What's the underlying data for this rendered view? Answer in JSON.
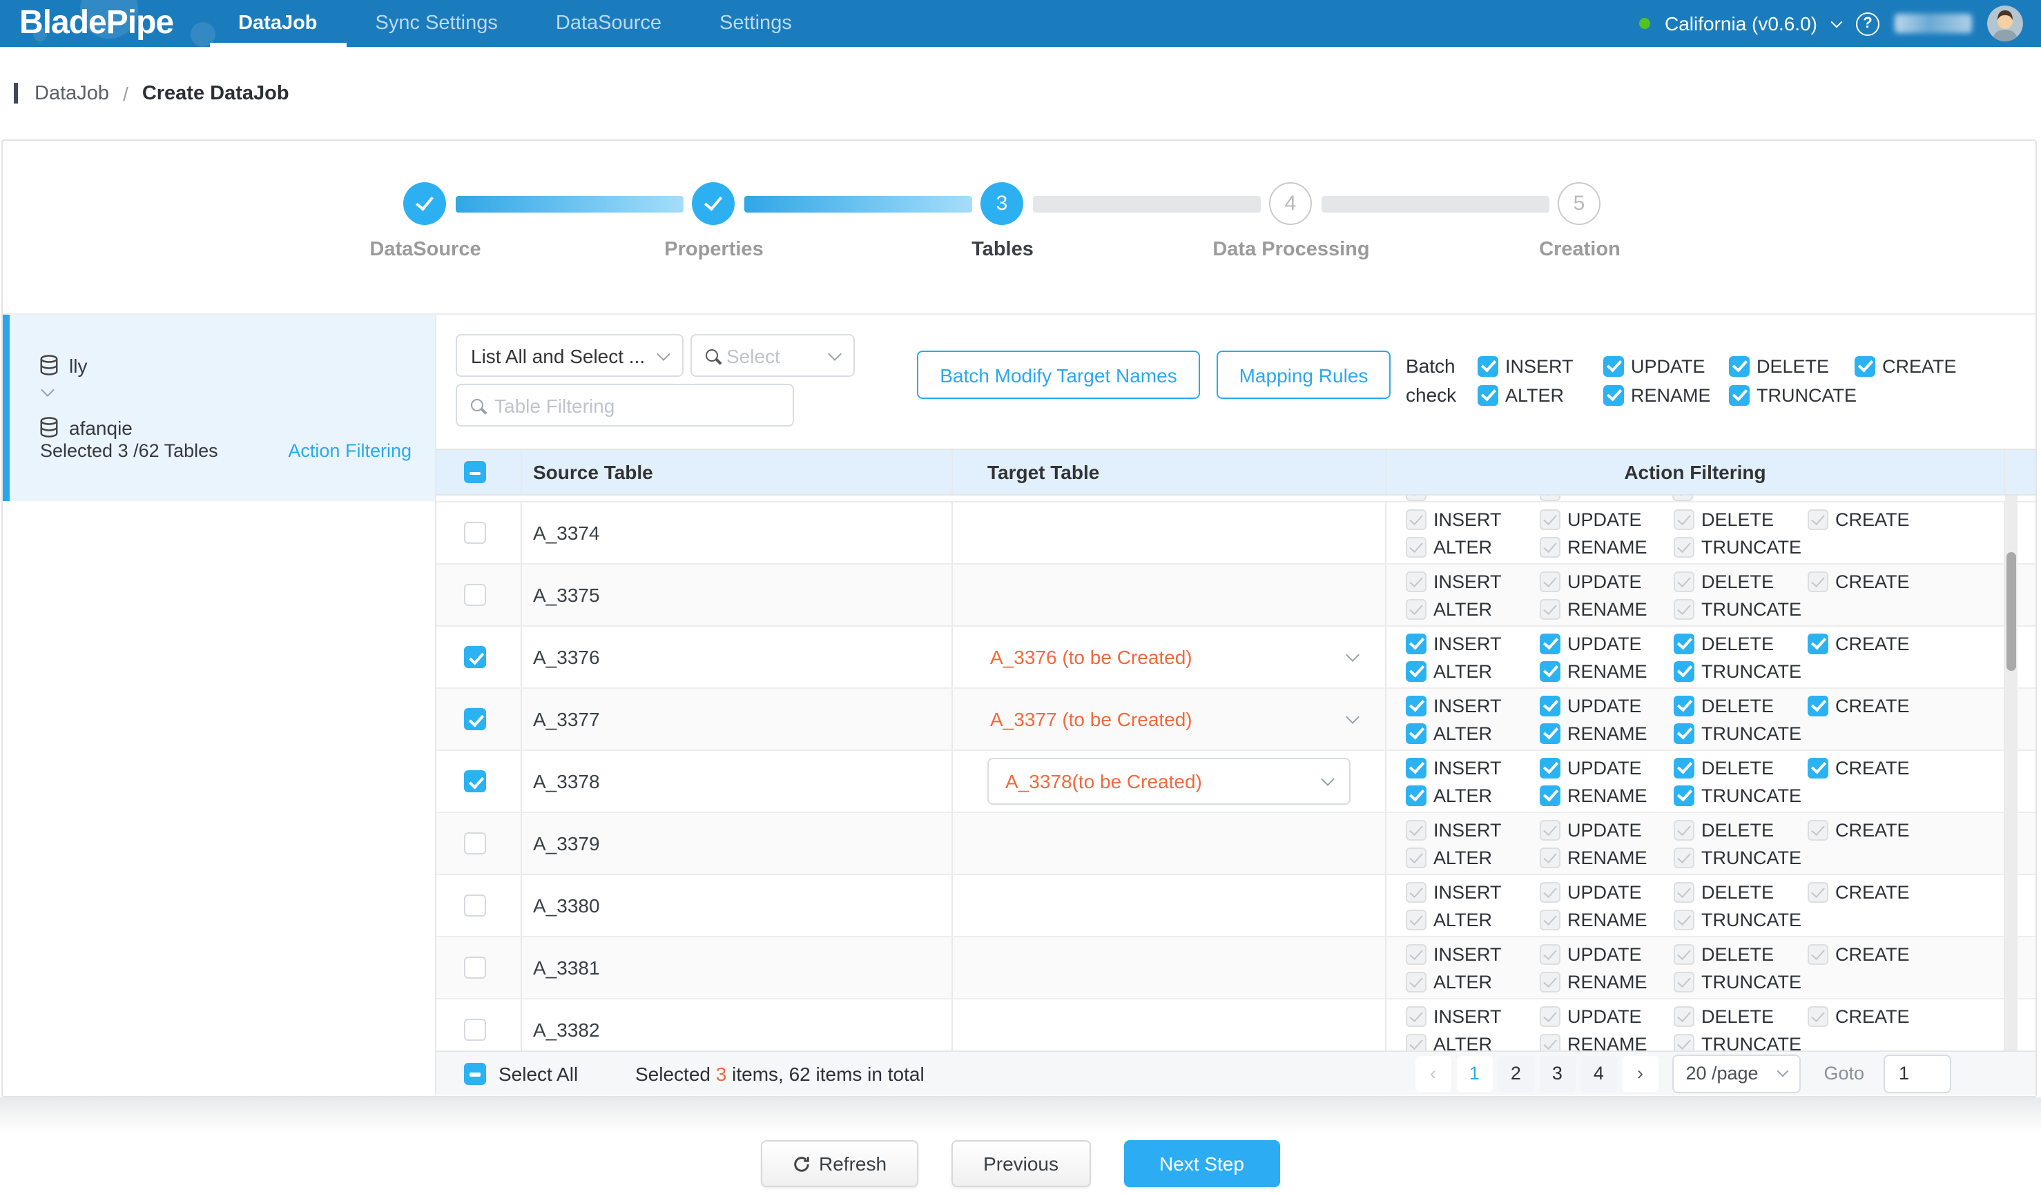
{
  "colors": {
    "nav_bg": "#1b7cbd",
    "accent_blue": "#29a9f0",
    "checkbox_blue": "#2bb2f3",
    "orange": "#f2683c",
    "status_green": "#52c41a",
    "table_header_bg": "#e2f0fd",
    "sidebar_item_bg": "#eaf4fd"
  },
  "nav": {
    "brand": "BladePipe",
    "items": [
      {
        "label": "DataJob",
        "active": true
      },
      {
        "label": "Sync Settings",
        "active": false
      },
      {
        "label": "DataSource",
        "active": false
      },
      {
        "label": "Settings",
        "active": false
      }
    ],
    "region_status": "California (v0.6.0)",
    "help_glyph": "?"
  },
  "breadcrumb": {
    "root": "DataJob",
    "separator": "/",
    "current": "Create DataJob"
  },
  "stepper": {
    "steps": [
      {
        "label": "DataSource",
        "state": "done"
      },
      {
        "label": "Properties",
        "state": "done"
      },
      {
        "label": "Tables",
        "state": "current",
        "number": "3"
      },
      {
        "label": "Data Processing",
        "state": "pending",
        "number": "4"
      },
      {
        "label": "Creation",
        "state": "pending",
        "number": "5"
      }
    ]
  },
  "sidebar": {
    "source_db": "lly",
    "target_db": "afanqie",
    "summary": "Selected 3 /62 Tables",
    "action_filtering_link": "Action Filtering"
  },
  "toolbar": {
    "list_mode_value": "List All and Select ...",
    "select_placeholder": "Select",
    "filter_placeholder": "Table Filtering",
    "batch_modify_button": "Batch Modify Target Names",
    "mapping_rules_button": "Mapping Rules",
    "batch_check_line1": "Batch",
    "batch_check_line2": "check"
  },
  "action_labels": {
    "line1": [
      "INSERT",
      "UPDATE",
      "DELETE",
      "CREATE"
    ],
    "line2": [
      "ALTER",
      "RENAME",
      "TRUNCATE"
    ]
  },
  "table": {
    "headers": {
      "source": "Source Table",
      "target": "Target Table",
      "action": "Action Filtering"
    },
    "rows": [
      {
        "source": "A_3374",
        "checked": false,
        "target": ""
      },
      {
        "source": "A_3375",
        "checked": false,
        "target": ""
      },
      {
        "source": "A_3376",
        "checked": true,
        "target": "A_3376 (to be Created)",
        "target_style": "plain"
      },
      {
        "source": "A_3377",
        "checked": true,
        "target": "A_3377 (to be Created)",
        "target_style": "plain"
      },
      {
        "source": "A_3378",
        "checked": true,
        "target": "A_3378(to be Created)",
        "target_style": "boxed"
      },
      {
        "source": "A_3379",
        "checked": false,
        "target": ""
      },
      {
        "source": "A_3380",
        "checked": false,
        "target": ""
      },
      {
        "source": "A_3381",
        "checked": false,
        "target": ""
      },
      {
        "source": "A_3382",
        "checked": false,
        "target": ""
      }
    ]
  },
  "footer": {
    "select_all": "Select All",
    "selected_prefix": "Selected ",
    "selected_count": "3",
    "selected_suffix": " items, 62 items in total",
    "pager_prev": "‹",
    "pages": [
      "1",
      "2",
      "3",
      "4"
    ],
    "active_page": "1",
    "pager_next": "›",
    "page_size": "20 /page",
    "goto_label": "Goto",
    "goto_value": "1"
  },
  "actions": {
    "refresh": "Refresh",
    "previous": "Previous",
    "next_step": "Next Step"
  }
}
